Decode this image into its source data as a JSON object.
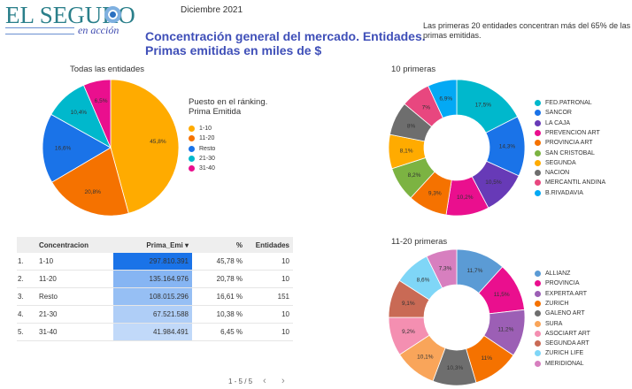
{
  "header": {
    "logo_main": "EL SEGURO",
    "logo_sub": "en acción",
    "date": "Diciembre 2021",
    "title_line1": "Concentración general del mercado. Entidades.",
    "title_line2": "Primas emitidas en miles de $",
    "note": "Las primeras 20 entidades concentran más del 65% de las primas emitidas."
  },
  "chart_data": [
    {
      "type": "pie",
      "title": "Todas las entidades",
      "legend_title": "Puesto en el ránking. Prima Emitida",
      "legend_position": "right",
      "categories": [
        "1-10",
        "11-20",
        "Resto",
        "21-30",
        "31-40"
      ],
      "values": [
        45.8,
        20.8,
        16.6,
        10.4,
        6.5
      ],
      "labels": [
        "45,8%",
        "20,8%",
        "16,6%",
        "10,4%",
        "6,5%"
      ],
      "colors": [
        "#ffab00",
        "#f57200",
        "#1a73e8",
        "#00b8cc",
        "#ea0f8e"
      ]
    },
    {
      "type": "pie",
      "donut": true,
      "title": "10 primeras",
      "legend_position": "right",
      "categories": [
        "FED.PATRONAL",
        "SANCOR",
        "LA CAJA",
        "PREVENCION ART",
        "PROVINCIA ART",
        "SAN CRISTOBAL",
        "SEGUNDA",
        "NACION",
        "MERCANTIL ANDINA",
        "B.RIVADAVIA"
      ],
      "values": [
        17.5,
        14.3,
        10.5,
        10.2,
        9.3,
        8.2,
        8.1,
        8,
        7,
        6.9
      ],
      "labels": [
        "17,5%",
        "14,3%",
        "10,5%",
        "10,2%",
        "9,3%",
        "8,2%",
        "8,1%",
        "8%",
        "7%",
        "6,9%"
      ],
      "colors": [
        "#00b8cc",
        "#1a73e8",
        "#673ab7",
        "#ea0f8e",
        "#f57200",
        "#7cb342",
        "#ffab00",
        "#6e6e6e",
        "#e8477f",
        "#03a9f4"
      ]
    },
    {
      "type": "pie",
      "donut": true,
      "title": "11-20 primeras",
      "legend_position": "right",
      "categories": [
        "ALLIANZ",
        "PROVINCIA",
        "EXPERTA ART",
        "ZURICH",
        "GALENO ART",
        "SURA",
        "ASOCIART ART",
        "SEGUNDA ART",
        "ZURICH LIFE",
        "MERIDIONAL"
      ],
      "values": [
        11.7,
        11.5,
        11.2,
        11,
        10.3,
        10.1,
        9.2,
        9.1,
        8.6,
        7.3
      ],
      "labels": [
        "11,7%",
        "11,5%",
        "11,2%",
        "11%",
        "10,3%",
        "10,1%",
        "9,2%",
        "9,1%",
        "8,6%",
        "7,3%"
      ],
      "colors": [
        "#5b9bd5",
        "#ea0f8e",
        "#9c5fb5",
        "#f57200",
        "#6e6e6e",
        "#f9a55a",
        "#f48fb1",
        "#c96a55",
        "#7fd6f7",
        "#d77fbf"
      ]
    }
  ],
  "table": {
    "headers": [
      "Concentracion",
      "Prima_Emi ▾",
      "%",
      "Entidades"
    ],
    "rows": [
      {
        "idx": "1.",
        "conc": "1-10",
        "prima": "297.810.391",
        "pct": "45,78 %",
        "ent": "10",
        "share": 1.0
      },
      {
        "idx": "2.",
        "conc": "11-20",
        "prima": "135.164.976",
        "pct": "20,78 %",
        "ent": "10",
        "share": 0.45
      },
      {
        "idx": "3.",
        "conc": "Resto",
        "prima": "108.015.296",
        "pct": "16,61 %",
        "ent": "151",
        "share": 0.36
      },
      {
        "idx": "4.",
        "conc": "21-30",
        "prima": "67.521.588",
        "pct": "10,38 %",
        "ent": "10",
        "share": 0.23
      },
      {
        "idx": "5.",
        "conc": "31-40",
        "prima": "41.984.491",
        "pct": "6,45 %",
        "ent": "10",
        "share": 0.14
      }
    ],
    "pager": "1 - 5 / 5",
    "prev": "‹",
    "next": "›"
  }
}
